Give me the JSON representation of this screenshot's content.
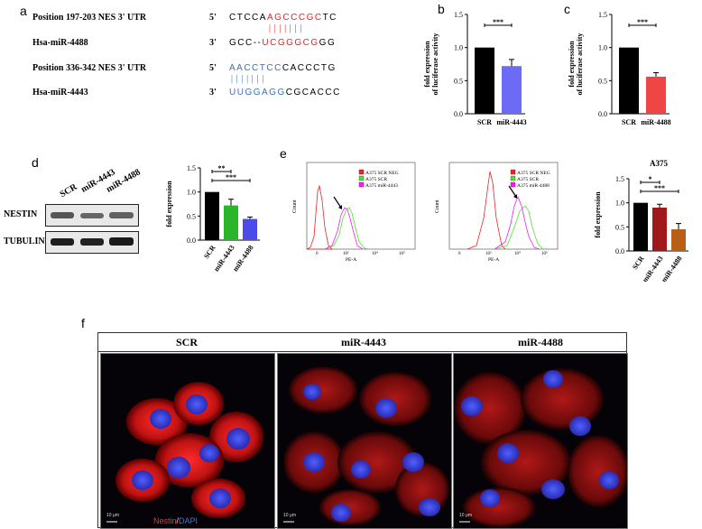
{
  "panels": {
    "a": "a",
    "b": "b",
    "c": "c",
    "d": "d",
    "e": "e",
    "f": "f"
  },
  "panel_a": {
    "row1": {
      "label": "Position 197-203 NES 3' UTR",
      "prime": "5'",
      "seq_plain_start": "CTCCA",
      "seq_red": "AGCCCGC",
      "seq_plain_end": "TC"
    },
    "pair1": "| | | | | | |",
    "row2": {
      "label": "Hsa-miR-4488",
      "prime": "3'",
      "seq_plain_start": "GCC--",
      "seq_red": "UCGGGCG",
      "seq_plain_end": "GG"
    },
    "row3": {
      "label": "Position 336-342 NES 3' UTR",
      "prime": "5'",
      "seq_blue": "AACCTCC",
      "seq_plain_end": "CACCCTG"
    },
    "pair3": "| | | | | | |",
    "row4": {
      "label": "Hsa-miR-4443",
      "prime": "3'",
      "seq_blue": "UUGGAGG",
      "seq_plain_end": "CGCACCC"
    }
  },
  "chart_data": [
    {
      "id": "b",
      "type": "bar",
      "categories": [
        "SCR",
        "miR-4443"
      ],
      "values": [
        1.0,
        0.72
      ],
      "errors": [
        0,
        0.1
      ],
      "colors": [
        "#000000",
        "#6b6bf5"
      ],
      "ylabel": "fold expression\nof luciferase activity",
      "ylim": [
        0,
        1.5
      ],
      "yticks": [
        "0.0",
        "0.5",
        "1.0",
        "1.5"
      ],
      "significance": [
        "***"
      ]
    },
    {
      "id": "c",
      "type": "bar",
      "categories": [
        "SCR",
        "miR-4488"
      ],
      "values": [
        1.0,
        0.56
      ],
      "errors": [
        0,
        0.06
      ],
      "colors": [
        "#000000",
        "#f04545"
      ],
      "ylabel": "fold expression\nof luciferase activity",
      "ylim": [
        0,
        1.5
      ],
      "yticks": [
        "0.0",
        "0.5",
        "1.0",
        "1.5"
      ],
      "significance": [
        "***"
      ]
    },
    {
      "id": "d",
      "type": "bar",
      "categories": [
        "SCR",
        "miR-4443",
        "miR-4488"
      ],
      "values": [
        1.0,
        0.72,
        0.44
      ],
      "errors": [
        0,
        0.13,
        0.04
      ],
      "colors": [
        "#000000",
        "#2bb52b",
        "#4b4be8"
      ],
      "ylabel": "fold expression",
      "ylim": [
        0,
        1.5
      ],
      "yticks": [
        "0.0",
        "0.5",
        "1.0",
        "1.5"
      ],
      "significance": [
        "**",
        "***"
      ]
    },
    {
      "id": "e",
      "type": "bar",
      "title": "A375",
      "categories": [
        "SCR",
        "miR-4443",
        "miR-4488"
      ],
      "values": [
        1.0,
        0.9,
        0.45
      ],
      "errors": [
        0,
        0.07,
        0.12
      ],
      "colors": [
        "#000000",
        "#a01818",
        "#b86018"
      ],
      "ylabel": "fold expression",
      "ylim": [
        0,
        1.5
      ],
      "yticks": [
        "0.0",
        "0.5",
        "1.0",
        "1.5"
      ],
      "significance": [
        "*",
        "***"
      ]
    }
  ],
  "western_blot": {
    "lanes": [
      "SCR",
      "miR-4443",
      "miR-4488"
    ],
    "rows": [
      "NESTIN",
      "TUBULIN"
    ]
  },
  "flow": {
    "plot1": {
      "legend": [
        "A375 SCR NEG",
        "A375 SCR",
        "A375 miR-4443"
      ],
      "ylabel": "Count",
      "xlabel": "PE-A"
    },
    "plot2": {
      "legend": [
        "A375 SCR NEG",
        "A375 SCR",
        "A375 miR-4488"
      ],
      "ylabel": "Count",
      "xlabel": "PE-A"
    },
    "legend_colors": [
      "#ee2222",
      "#55dd33",
      "#ee22ee"
    ],
    "xticks": [
      "0",
      "10³",
      "10⁴",
      "10⁵"
    ]
  },
  "micro": {
    "headers": [
      "SCR",
      "miR-4443",
      "miR-4488"
    ],
    "stain_nestin": "Nestin",
    "stain_sep": "/",
    "stain_dapi": "DAPI",
    "scale": "10 μm"
  }
}
